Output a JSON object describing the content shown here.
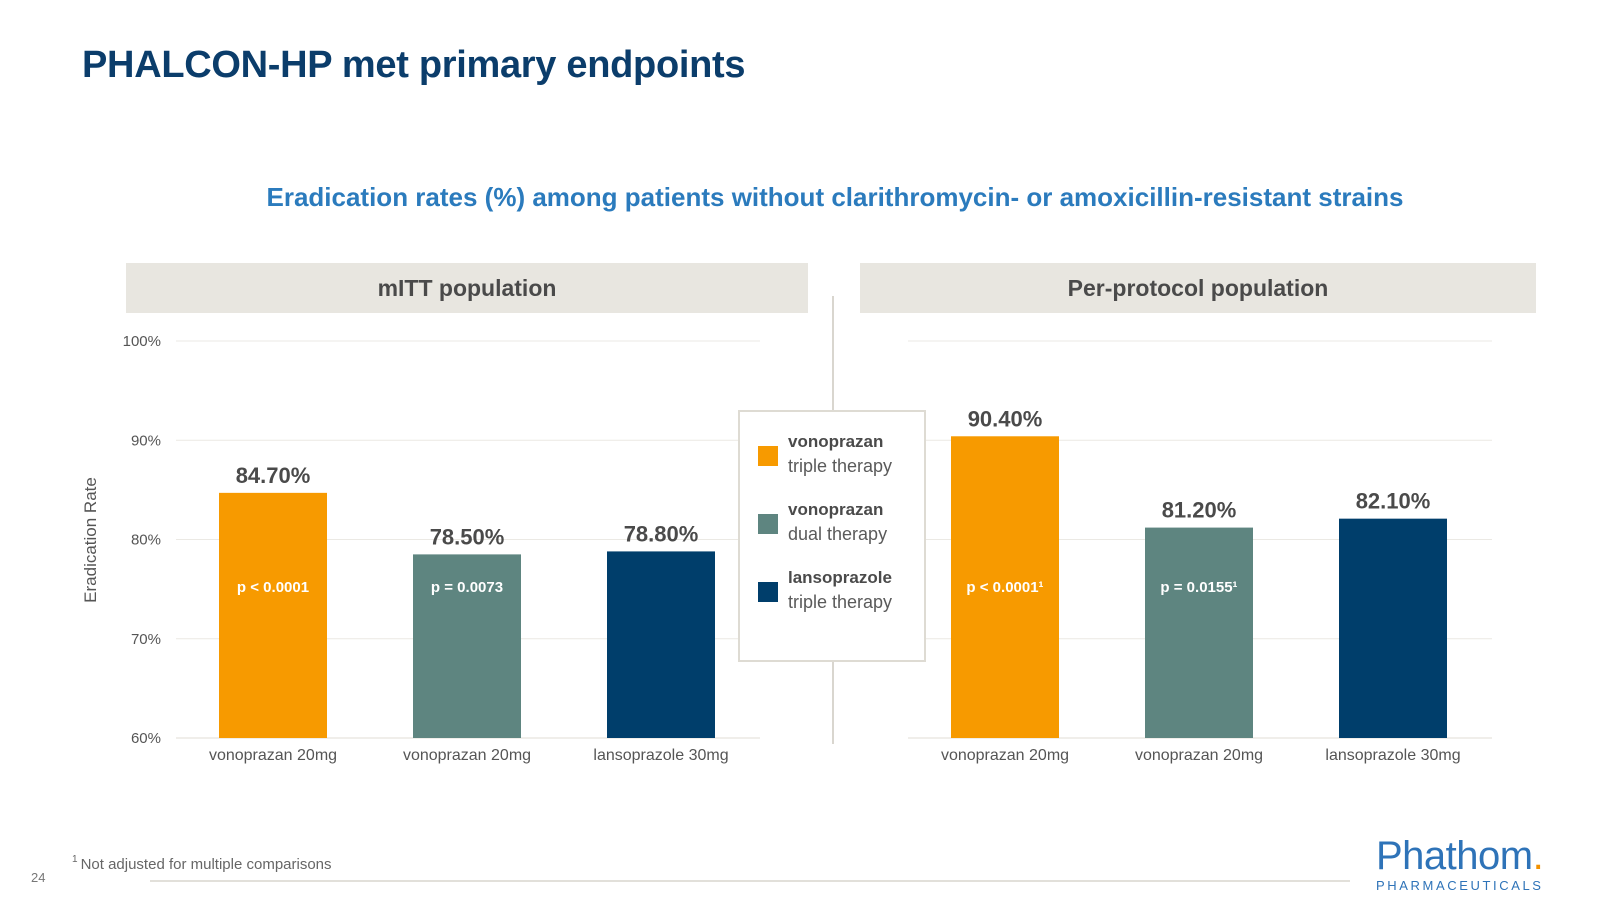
{
  "slide": {
    "title": "PHALCON-HP met primary endpoints",
    "page_number": "24",
    "footnote_marker": "1",
    "footnote_text": "Not adjusted for multiple comparisons",
    "logo_main": "Phathom",
    "logo_sub": "PHARMACEUTICALS"
  },
  "legend": {
    "items": [
      {
        "name": "vonoprazan",
        "sub": "triple therapy",
        "color": "#f79a00"
      },
      {
        "name": "vonoprazan",
        "sub": "dual therapy",
        "color": "#5e8580"
      },
      {
        "name": "lansoprazole",
        "sub": "triple therapy",
        "color": "#003e6b"
      }
    ]
  },
  "chart_data": {
    "type": "bar",
    "title": "Eradication rates (%) among patients without clarithromycin- or amoxicillin-resistant strains",
    "ylabel": "Eradication Rate",
    "ylim": [
      60,
      100
    ],
    "yticks": [
      60,
      70,
      80,
      90,
      100
    ],
    "ytick_labels": [
      "60%",
      "70%",
      "80%",
      "90%",
      "100%"
    ],
    "grid": true,
    "colors": [
      "#f79a00",
      "#5e8580",
      "#003e6b"
    ],
    "panels": [
      {
        "title": "mITT population",
        "categories": [
          "vonoprazan 20mg",
          "vonoprazan 20mg",
          "lansoprazole 30mg"
        ],
        "values": [
          84.7,
          78.5,
          78.8
        ],
        "value_labels": [
          "84.70%",
          "78.50%",
          "78.80%"
        ],
        "p_values": [
          "p < 0.0001",
          "p = 0.0073",
          ""
        ]
      },
      {
        "title": "Per-protocol population",
        "categories": [
          "vonoprazan 20mg",
          "vonoprazan 20mg",
          "lansoprazole 30mg"
        ],
        "values": [
          90.4,
          81.2,
          82.1
        ],
        "value_labels": [
          "90.40%",
          "81.20%",
          "82.10%"
        ],
        "p_values": [
          "p < 0.0001¹",
          "p = 0.0155¹",
          ""
        ]
      }
    ]
  }
}
